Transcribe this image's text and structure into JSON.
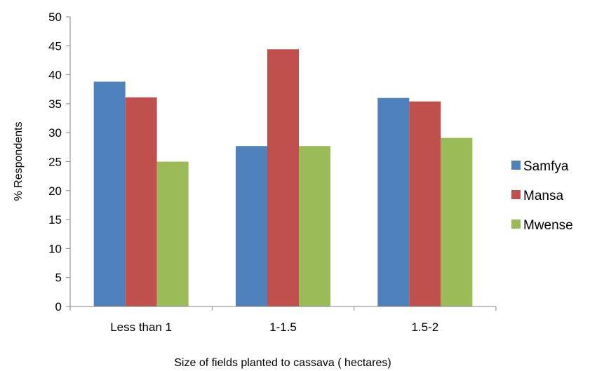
{
  "chart_data": {
    "type": "bar",
    "title": "",
    "xlabel": "Size of fields planted to cassava ( hectares)",
    "ylabel": "% Respondents",
    "categories": [
      "Less than 1",
      "1-1.5",
      "1.5-2"
    ],
    "ylim": [
      0,
      50
    ],
    "yticks": [
      0,
      5,
      10,
      15,
      20,
      25,
      30,
      35,
      40,
      45,
      50
    ],
    "grid": false,
    "legend_position": "right",
    "series": [
      {
        "name": "Samfya",
        "color": "#4f81bd",
        "values": [
          38.8,
          27.7,
          36.0
        ]
      },
      {
        "name": "Mansa",
        "color": "#c0504d",
        "values": [
          36.1,
          44.4,
          35.4
        ]
      },
      {
        "name": "Mwense",
        "color": "#9bbb59",
        "values": [
          25.0,
          27.7,
          29.1
        ]
      }
    ]
  }
}
